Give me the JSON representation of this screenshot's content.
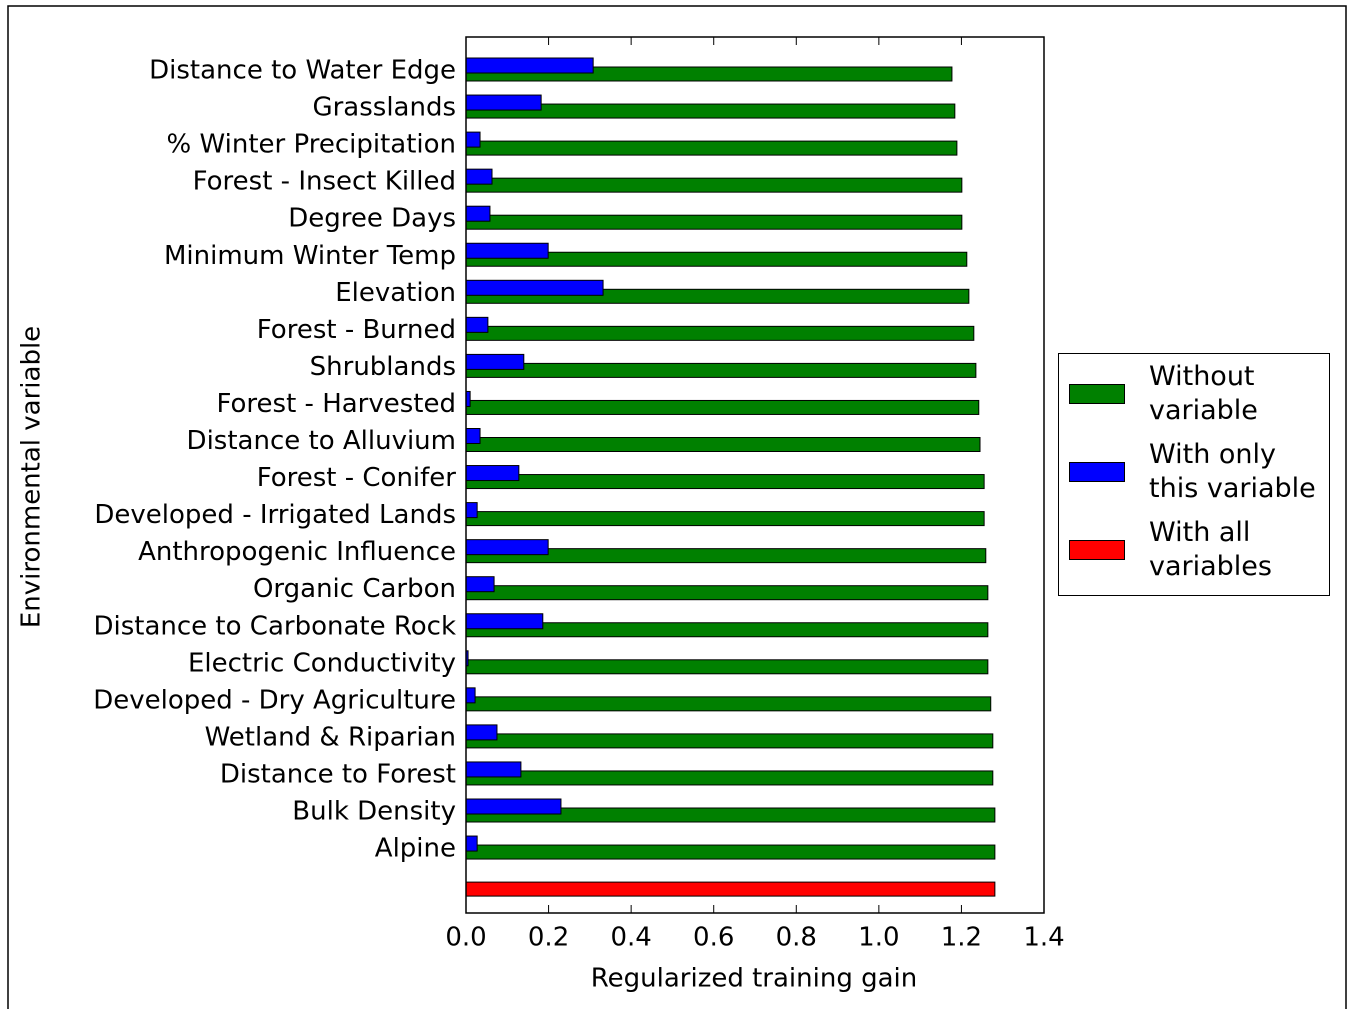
{
  "chart_data": {
    "type": "bar",
    "orientation": "horizontal",
    "categories": [
      "Distance to Water Edge",
      "Grasslands",
      "% Winter Precipitation",
      "Forest - Insect Killed",
      "Degree Days",
      "Minimum Winter Temp",
      "Elevation",
      "Forest - Burned",
      "Shrublands",
      "Forest - Harvested",
      "Distance to Alluvium",
      "Forest - Conifer",
      "Developed - Irrigated Lands",
      "Anthropogenic Influence",
      "Organic Carbon",
      "Distance to Carbonate Rock",
      "Electric Conductivity",
      "Developed - Dry Agriculture",
      "Wetland & Riparian",
      "Distance to Forest",
      "Bulk Density",
      "Alpine",
      null
    ],
    "series": [
      {
        "name": "Without variable",
        "color": "#008000",
        "values": [
          1.177,
          1.184,
          1.189,
          1.201,
          1.201,
          1.213,
          1.218,
          1.23,
          1.235,
          1.242,
          1.245,
          1.255,
          1.255,
          1.259,
          1.264,
          1.264,
          1.264,
          1.271,
          1.276,
          1.276,
          1.281,
          1.281,
          null
        ]
      },
      {
        "name": "With only this variable",
        "color": "#0000ff",
        "values": [
          0.308,
          0.182,
          0.034,
          0.063,
          0.058,
          0.199,
          0.332,
          0.053,
          0.14,
          0.01,
          0.034,
          0.128,
          0.027,
          0.199,
          0.068,
          0.186,
          0.005,
          0.022,
          0.075,
          0.133,
          0.23,
          0.027,
          null
        ]
      },
      {
        "name": "With all variables",
        "color": "#ff0000",
        "values": [
          null,
          null,
          null,
          null,
          null,
          null,
          null,
          null,
          null,
          null,
          null,
          null,
          null,
          null,
          null,
          null,
          null,
          null,
          null,
          null,
          null,
          null,
          1.281
        ]
      }
    ],
    "x_label": "Regularized training gain",
    "y_label": "Environmental variable",
    "xlim": [
      0,
      1.4
    ],
    "xticks": [
      {
        "value": 0,
        "label": "0.0"
      },
      0.2,
      0.4,
      0.6,
      0.8,
      {
        "value": 1,
        "label": "1.0"
      },
      1.2,
      1.4
    ],
    "grid": false,
    "legend": "right"
  }
}
